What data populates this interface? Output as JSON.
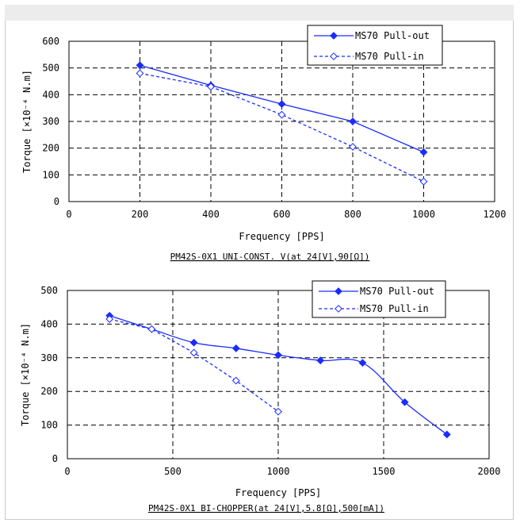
{
  "chart_data": [
    {
      "type": "line",
      "caption": "PM42S-0X1 UNI-CONST. V(at 24[V],90[Ω])",
      "xlabel": "Frequency [PPS]",
      "ylabel": "Torque [×10⁻⁴ N.m]",
      "xlim": [
        0,
        1200
      ],
      "ylim": [
        0,
        600
      ],
      "xticks": [
        0,
        200,
        400,
        600,
        800,
        1000,
        1200
      ],
      "yticks": [
        0,
        100,
        200,
        300,
        400,
        500,
        600
      ],
      "grid": true,
      "legend_position": "top-right",
      "series": [
        {
          "name": "MS70 Pull-out",
          "style": "solid",
          "marker": "filled-diamond",
          "color": "#1a2cff",
          "x": [
            200,
            400,
            600,
            800,
            1000
          ],
          "y": [
            510,
            435,
            365,
            300,
            185
          ]
        },
        {
          "name": "MS70 Pull-in",
          "style": "dashed",
          "marker": "open-diamond",
          "color": "#1a2cff",
          "x": [
            200,
            400,
            600,
            800,
            1000
          ],
          "y": [
            480,
            430,
            325,
            205,
            75
          ]
        }
      ]
    },
    {
      "type": "line",
      "caption": "PM42S-0X1 BI-CHOPPER(at 24[V],5.8[Ω],500[mA])",
      "xlabel": "Frequency [PPS]",
      "ylabel": "Torque [×10⁻⁴ N.m]",
      "xlim": [
        0,
        2000
      ],
      "ylim": [
        0,
        500
      ],
      "xticks": [
        0,
        500,
        1000,
        1500,
        2000
      ],
      "yticks": [
        0,
        100,
        200,
        300,
        400,
        500
      ],
      "grid": true,
      "legend_position": "top-right",
      "series": [
        {
          "name": "MS70 Pull-out",
          "style": "solid",
          "marker": "filled-diamond",
          "color": "#1a2cff",
          "x": [
            200,
            400,
            600,
            800,
            1000,
            1200,
            1400,
            1600,
            1800
          ],
          "y": [
            425,
            385,
            345,
            328,
            308,
            292,
            285,
            168,
            72
          ]
        },
        {
          "name": "MS70 Pull-in",
          "style": "dashed",
          "marker": "open-diamond",
          "color": "#1a2cff",
          "x": [
            200,
            400,
            600,
            800,
            1000
          ],
          "y": [
            415,
            385,
            315,
            232,
            140
          ]
        }
      ]
    }
  ]
}
